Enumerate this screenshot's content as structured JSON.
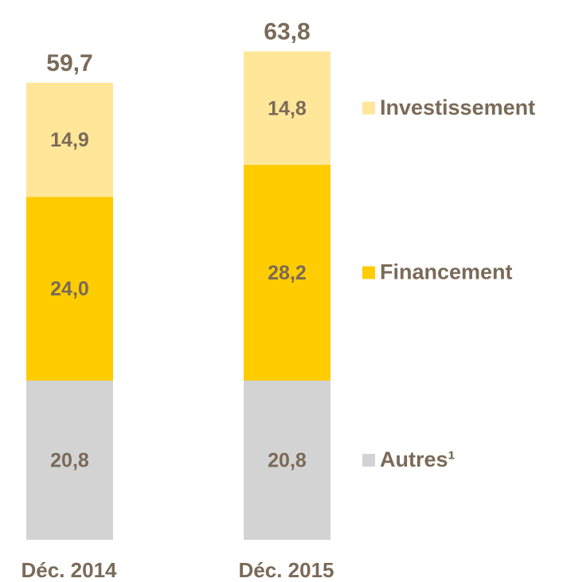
{
  "chart_data": {
    "type": "stacked_bar",
    "categories": [
      "Déc. 2014",
      "Déc. 2015"
    ],
    "series": [
      {
        "name": "Autres¹",
        "color": "#d3d3d3",
        "values": [
          20.8,
          20.8
        ],
        "value_labels": [
          "20,8",
          "20,8"
        ]
      },
      {
        "name": "Financement",
        "color": "#ffcc00",
        "values": [
          24.0,
          28.2
        ],
        "value_labels": [
          "24,0",
          "28,2"
        ]
      },
      {
        "name": "Investissement",
        "color": "#ffe699",
        "values": [
          14.9,
          14.8
        ],
        "value_labels": [
          "14,9",
          "14,8"
        ]
      }
    ],
    "totals": [
      59.7,
      63.8
    ],
    "total_labels": [
      "59,7",
      "63,8"
    ],
    "legend": "right"
  }
}
